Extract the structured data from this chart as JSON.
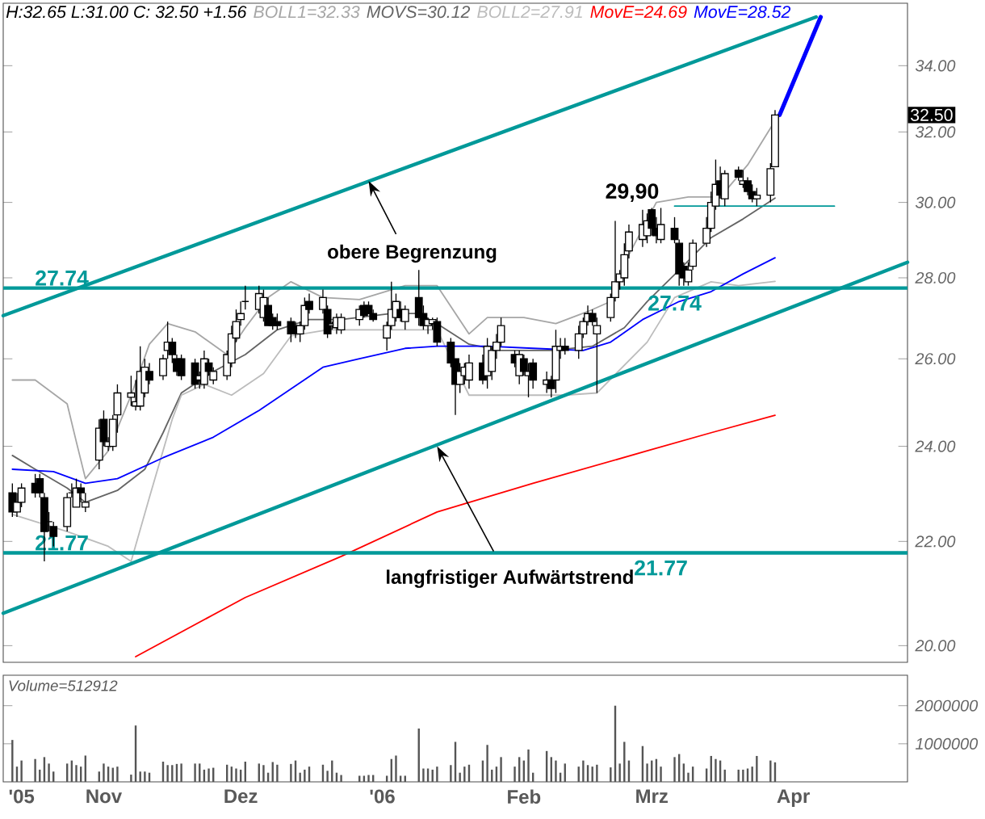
{
  "chart_data": [
    {
      "type": "candlestick",
      "title": "H:32.65 L:31.00 C: 32.50 +1.56",
      "color": "#000000",
      "log": "y",
      "legend": "top",
      "tick_labels": "y",
      "xlim": [
        "2005-10-10",
        "2006-04-26"
      ],
      "ylim": [
        19.7,
        36
      ],
      "yticks": [
        {
          "value": 20,
          "label": "20.00"
        },
        {
          "value": 22,
          "label": "22.00"
        },
        {
          "value": 24,
          "label": "24.00"
        },
        {
          "value": 26,
          "label": "26.00"
        },
        {
          "value": 28,
          "label": "28.00"
        },
        {
          "value": 30,
          "label": "30.00"
        },
        {
          "value": 32,
          "label": "32.00"
        },
        {
          "value": 34,
          "label": "34.00"
        }
      ],
      "x": [
        "2005-10-12",
        "2005-10-13",
        "2005-10-14",
        "2005-10-17",
        "2005-10-18",
        "2005-10-19",
        "2005-10-20",
        "2005-10-21",
        "2005-10-24",
        "2005-10-25",
        "2005-10-26",
        "2005-10-27",
        "2005-10-28",
        "2005-10-31",
        "2005-11-01",
        "2005-11-02",
        "2005-11-03",
        "2005-11-04",
        "2005-11-07",
        "2005-11-08",
        "2005-11-09",
        "2005-11-10",
        "2005-11-11",
        "2005-11-14",
        "2005-11-15",
        "2005-11-16",
        "2005-11-17",
        "2005-11-18",
        "2005-11-21",
        "2005-11-22",
        "2005-11-23",
        "2005-11-24",
        "2005-11-25",
        "2005-11-28",
        "2005-11-29",
        "2005-11-30",
        "2005-12-01",
        "2005-12-02",
        "2005-12-05",
        "2005-12-06",
        "2005-12-07",
        "2005-12-08",
        "2005-12-09",
        "2005-12-12",
        "2005-12-13",
        "2005-12-14",
        "2005-12-15",
        "2005-12-16",
        "2005-12-19",
        "2005-12-20",
        "2005-12-21",
        "2005-12-22",
        "2005-12-23",
        "2005-12-27",
        "2005-12-28",
        "2005-12-29",
        "2005-12-30",
        "2006-01-02",
        "2006-01-03",
        "2006-01-04",
        "2006-01-05",
        "2006-01-06",
        "2006-01-09",
        "2006-01-10",
        "2006-01-11",
        "2006-01-12",
        "2006-01-13",
        "2006-01-16",
        "2006-01-17",
        "2006-01-18",
        "2006-01-19",
        "2006-01-20",
        "2006-01-23",
        "2006-01-24",
        "2006-01-25",
        "2006-01-26",
        "2006-01-27",
        "2006-01-30",
        "2006-01-31",
        "2006-02-01",
        "2006-02-02",
        "2006-02-03",
        "2006-02-06",
        "2006-02-07",
        "2006-02-08",
        "2006-02-09",
        "2006-02-10",
        "2006-02-13",
        "2006-02-14",
        "2006-02-15",
        "2006-02-16",
        "2006-02-17",
        "2006-02-20",
        "2006-02-21",
        "2006-02-22",
        "2006-02-23",
        "2006-02-24",
        "2006-02-27",
        "2006-02-28",
        "2006-03-01",
        "2006-03-02",
        "2006-03-03",
        "2006-03-06",
        "2006-03-07",
        "2006-03-08",
        "2006-03-09",
        "2006-03-10",
        "2006-03-13",
        "2006-03-14",
        "2006-03-15",
        "2006-03-16",
        "2006-03-17",
        "2006-03-20",
        "2006-03-21",
        "2006-03-22",
        "2006-03-23",
        "2006-03-24",
        "2006-03-27",
        "2006-03-28"
      ],
      "ohlc": [
        [
          23.0,
          23.2,
          22.5,
          22.6
        ],
        [
          22.6,
          23.0,
          22.5,
          22.8
        ],
        [
          22.8,
          23.2,
          22.7,
          23.1
        ],
        [
          23.2,
          23.4,
          22.9,
          23.0
        ],
        [
          23.3,
          23.4,
          22.9,
          23.0
        ],
        [
          22.9,
          23.0,
          21.6,
          22.2
        ],
        [
          22.4,
          22.6,
          22.2,
          22.4
        ],
        [
          22.3,
          22.4,
          21.9,
          22.1
        ],
        [
          22.3,
          23.0,
          22.2,
          22.9
        ],
        [
          23.0,
          23.2,
          22.9,
          23.0
        ],
        [
          22.7,
          23.3,
          22.7,
          23.1
        ],
        [
          23.1,
          23.2,
          22.8,
          23.0
        ],
        [
          22.7,
          23.0,
          22.6,
          22.8
        ],
        [
          23.7,
          24.6,
          23.5,
          24.4
        ],
        [
          24.6,
          24.8,
          24.0,
          24.1
        ],
        [
          24.0,
          24.2,
          23.9,
          24.1
        ],
        [
          24.0,
          24.7,
          23.9,
          24.6
        ],
        [
          24.7,
          25.4,
          24.3,
          25.2
        ],
        [
          25.1,
          25.6,
          24.9,
          25.2
        ],
        [
          24.9,
          25.5,
          24.8,
          25.0
        ],
        [
          24.9,
          26.3,
          24.8,
          25.7
        ],
        [
          25.2,
          26.0,
          25.1,
          25.8
        ],
        [
          25.7,
          25.9,
          25.4,
          25.5
        ],
        [
          25.6,
          26.1,
          25.5,
          26.0
        ],
        [
          26.2,
          26.9,
          26.0,
          26.4
        ],
        [
          26.4,
          26.5,
          25.9,
          26.1
        ],
        [
          26.0,
          26.1,
          25.6,
          25.7
        ],
        [
          26.0,
          26.1,
          25.5,
          25.6
        ],
        [
          25.9,
          26.0,
          25.3,
          25.4
        ],
        [
          25.5,
          25.7,
          25.3,
          25.6
        ],
        [
          25.4,
          26.2,
          25.3,
          26.0
        ],
        [
          25.9,
          26.0,
          25.6,
          25.7
        ],
        [
          25.5,
          25.8,
          25.4,
          25.7
        ],
        [
          25.6,
          26.2,
          25.5,
          26.1
        ],
        [
          25.9,
          26.8,
          25.8,
          26.6
        ],
        [
          26.5,
          27.2,
          26.4,
          26.9
        ],
        [
          26.95,
          27.4,
          26.8,
          27.1
        ],
        [
          27.4,
          27.8,
          27.2,
          27.4
        ],
        [
          27.2,
          27.8,
          27.1,
          27.6
        ],
        [
          27.0,
          27.7,
          26.9,
          27.5
        ],
        [
          27.3,
          27.5,
          26.8,
          26.8
        ],
        [
          27.0,
          27.1,
          26.7,
          26.8
        ],
        [
          26.9,
          27.1,
          26.7,
          26.8
        ],
        [
          26.9,
          27.0,
          26.4,
          26.6
        ],
        [
          26.8,
          26.9,
          26.5,
          26.6
        ],
        [
          26.6,
          26.9,
          26.4,
          26.8
        ],
        [
          26.8,
          27.5,
          26.7,
          27.3
        ],
        [
          27.4,
          27.6,
          27.1,
          27.2
        ],
        [
          27.2,
          27.7,
          27.1,
          27.5
        ],
        [
          27.2,
          27.3,
          26.5,
          26.6
        ],
        [
          26.8,
          26.9,
          26.7,
          26.85
        ],
        [
          26.75,
          27.1,
          26.6,
          27.0
        ],
        [
          26.7,
          27.1,
          26.6,
          27.0
        ],
        [
          26.95,
          27.3,
          26.8,
          27.2
        ],
        [
          27.3,
          27.4,
          27.0,
          27.05
        ],
        [
          27.3,
          27.4,
          27.1,
          27.1
        ],
        [
          27.1,
          27.2,
          26.9,
          26.95
        ],
        [
          26.5,
          26.9,
          26.2,
          26.8
        ],
        [
          26.8,
          27.9,
          26.7,
          27.2
        ],
        [
          27.0,
          27.6,
          26.9,
          27.4
        ],
        [
          27.2,
          27.4,
          26.9,
          27.0
        ],
        [
          26.9,
          27.3,
          26.7,
          27.2
        ],
        [
          27.5,
          28.2,
          26.8,
          27.0
        ],
        [
          27.1,
          27.3,
          26.7,
          26.8
        ],
        [
          26.8,
          27.0,
          26.6,
          26.95
        ],
        [
          26.85,
          27.0,
          26.7,
          26.95
        ],
        [
          26.9,
          27.0,
          26.3,
          26.4
        ],
        [
          26.4,
          26.5,
          25.8,
          25.9
        ],
        [
          26.0,
          26.0,
          24.7,
          25.4
        ],
        [
          25.4,
          25.9,
          25.2,
          25.7
        ],
        [
          25.6,
          25.9,
          25.4,
          25.8
        ],
        [
          25.5,
          26.1,
          25.3,
          25.9
        ],
        [
          25.9,
          26.1,
          25.4,
          25.5
        ],
        [
          25.6,
          26.5,
          25.3,
          26.3
        ],
        [
          25.7,
          26.3,
          25.5,
          26.2
        ],
        [
          26.2,
          26.6,
          26.0,
          26.4
        ],
        [
          26.4,
          27.0,
          26.3,
          26.8
        ],
        [
          26.1,
          26.2,
          25.8,
          25.9
        ],
        [
          25.6,
          26.2,
          25.4,
          26.1
        ],
        [
          26.0,
          26.1,
          25.6,
          25.7
        ],
        [
          25.6,
          25.9,
          25.1,
          25.7
        ],
        [
          25.9,
          26.0,
          25.3,
          25.5
        ],
        [
          25.4,
          25.7,
          25.2,
          25.5
        ],
        [
          25.5,
          25.6,
          25.1,
          25.3
        ],
        [
          25.5,
          26.7,
          25.2,
          26.3
        ],
        [
          26.2,
          26.5,
          26.0,
          26.3
        ],
        [
          26.3,
          26.5,
          26.1,
          26.2
        ],
        [
          26.2,
          26.8,
          26.0,
          26.6
        ],
        [
          26.6,
          27.0,
          26.5,
          26.9
        ],
        [
          26.9,
          27.3,
          26.8,
          27.1
        ],
        [
          27.1,
          27.2,
          26.8,
          26.9
        ],
        [
          26.6,
          27.0,
          25.2,
          26.8
        ],
        [
          27.0,
          27.6,
          26.9,
          27.5
        ],
        [
          27.5,
          29.5,
          27.4,
          27.9
        ],
        [
          27.9,
          28.2,
          27.7,
          28.1
        ],
        [
          28.0,
          28.9,
          27.8,
          28.6
        ],
        [
          28.7,
          29.4,
          28.5,
          29.2
        ],
        [
          29.0,
          29.8,
          28.8,
          29.4
        ],
        [
          29.1,
          29.7,
          28.9,
          29.5
        ],
        [
          29.8,
          29.85,
          29.1,
          29.3
        ],
        [
          29.3,
          29.6,
          28.9,
          29.1
        ],
        [
          29.0,
          29.85,
          28.9,
          29.4
        ],
        [
          29.3,
          29.6,
          28.9,
          29.0
        ],
        [
          28.9,
          29.0,
          27.8,
          28.1
        ],
        [
          28.3,
          28.4,
          27.8,
          28.0
        ],
        [
          27.9,
          28.4,
          27.8,
          28.2
        ],
        [
          28.3,
          29.0,
          28.2,
          28.9
        ],
        [
          28.9,
          29.6,
          28.8,
          29.3
        ],
        [
          29.3,
          30.3,
          29.2,
          30.0
        ],
        [
          29.9,
          31.2,
          29.8,
          30.5
        ],
        [
          30.6,
          31.0,
          30.1,
          30.2
        ],
        [
          30.1,
          30.9,
          29.9,
          30.8
        ],
        [
          30.9,
          31.0,
          30.6,
          30.7
        ],
        [
          30.5,
          30.9,
          30.4,
          30.6
        ],
        [
          30.6,
          30.7,
          30.2,
          30.3
        ],
        [
          30.3,
          30.5,
          30.0,
          30.1
        ],
        [
          30.1,
          30.4,
          29.9,
          30.2
        ],
        [
          30.2,
          31.1,
          30.0,
          30.94
        ],
        [
          31.0,
          32.65,
          31.0,
          32.5
        ]
      ],
      "series": [
        {
          "name": "BOLL1=32.33",
          "type": "line",
          "color": "#a6a6a6",
          "x": [
            "2005-10-12",
            "2005-10-17",
            "2005-10-24",
            "2005-10-26",
            "2005-10-28",
            "2005-11-02",
            "2005-11-07",
            "2005-11-11",
            "2005-11-15",
            "2005-11-21",
            "2005-11-28",
            "2005-12-02",
            "2005-12-07",
            "2005-12-12",
            "2005-12-19",
            "2005-12-27",
            "2006-01-06",
            "2006-01-13",
            "2006-01-20",
            "2006-01-24",
            "2006-02-01",
            "2006-02-08",
            "2006-02-15",
            "2006-02-20",
            "2006-02-24",
            "2006-03-02",
            "2006-03-09",
            "2006-03-16",
            "2006-03-22",
            "2006-03-28"
          ],
          "values": [
            25.5,
            25.5,
            24.95,
            24.1,
            23.3,
            23.9,
            25.15,
            26.35,
            26.85,
            26.65,
            26.1,
            26.75,
            27.5,
            27.9,
            27.5,
            27.45,
            27.8,
            27.8,
            26.6,
            27.0,
            27.0,
            26.85,
            27.15,
            27.4,
            28.6,
            30.0,
            30.15,
            30.15,
            31.05,
            32.33
          ]
        },
        {
          "name": "MOVS=30.12",
          "type": "line",
          "color": "#646464",
          "x": [
            "2005-10-12",
            "2005-10-17",
            "2005-10-24",
            "2005-10-28",
            "2005-11-04",
            "2005-11-10",
            "2005-11-14",
            "2005-11-18",
            "2005-11-25",
            "2005-12-02",
            "2005-12-09",
            "2005-12-16",
            "2005-12-23",
            "2006-01-03",
            "2006-01-09",
            "2006-01-13",
            "2006-01-20",
            "2006-01-27",
            "2006-02-07",
            "2006-02-16",
            "2006-02-23",
            "2006-02-28",
            "2006-03-07",
            "2006-03-14",
            "2006-03-21",
            "2006-03-28"
          ],
          "values": [
            23.8,
            23.5,
            23.1,
            22.8,
            23.05,
            23.5,
            24.3,
            25.2,
            25.7,
            26.1,
            26.7,
            26.95,
            26.95,
            27.1,
            27.1,
            26.85,
            26.35,
            26.2,
            26.2,
            26.3,
            26.75,
            27.4,
            28.2,
            29.05,
            29.55,
            30.12
          ]
        },
        {
          "name": "BOLL2=27.91",
          "type": "line",
          "color": "#bcbcbc",
          "x": [
            "2005-10-12",
            "2005-10-24",
            "2005-11-02",
            "2005-11-07",
            "2005-11-11",
            "2005-11-16",
            "2005-11-18",
            "2005-11-23",
            "2005-11-29",
            "2005-12-06",
            "2005-12-12",
            "2005-12-20",
            "2006-01-03",
            "2006-01-13",
            "2006-01-20",
            "2006-02-01",
            "2006-02-10",
            "2006-02-17",
            "2006-02-28",
            "2006-03-06",
            "2006-03-14",
            "2006-03-20",
            "2006-03-28"
          ],
          "values": [
            22.55,
            22.2,
            21.9,
            21.6,
            22.9,
            24.6,
            25.15,
            25.4,
            25.15,
            25.65,
            26.55,
            26.7,
            26.7,
            26.7,
            25.15,
            25.15,
            25.15,
            25.2,
            26.4,
            27.5,
            27.9,
            27.8,
            27.91
          ]
        },
        {
          "name": "MovE=24.69",
          "type": "line",
          "color": "#ff0000",
          "x": [
            "2005-11-08",
            "2005-12-02",
            "2005-12-23",
            "2006-01-13",
            "2006-02-03",
            "2006-02-28",
            "2006-03-14",
            "2006-03-28"
          ],
          "values": [
            19.8,
            20.9,
            21.7,
            22.6,
            23.2,
            23.9,
            24.3,
            24.69
          ]
        },
        {
          "name": "MovE=28.52",
          "type": "line",
          "color": "#0000ff",
          "x": [
            "2005-10-12",
            "2005-10-21",
            "2005-10-28",
            "2005-11-04",
            "2005-11-14",
            "2005-11-25",
            "2005-12-05",
            "2005-12-19",
            "2005-12-27",
            "2006-01-06",
            "2006-01-13",
            "2006-01-24",
            "2006-02-03",
            "2006-02-14",
            "2006-02-20",
            "2006-02-27",
            "2006-03-07",
            "2006-03-14",
            "2006-03-21",
            "2006-03-28"
          ],
          "values": [
            23.5,
            23.45,
            23.2,
            23.3,
            23.75,
            24.2,
            24.8,
            25.8,
            26.0,
            26.25,
            26.3,
            26.3,
            26.25,
            26.2,
            26.4,
            26.95,
            27.4,
            27.65,
            28.1,
            28.52
          ]
        },
        {
          "type": "line",
          "color": "#009999",
          "x": [
            "2005-10-10",
            "2006-04-06"
          ],
          "values": [
            27.05,
            35.55
          ]
        },
        {
          "type": "line",
          "color": "#009999",
          "x": [
            "2005-10-10",
            "2006-04-26"
          ],
          "values": [
            20.6,
            28.4
          ]
        },
        {
          "type": "line",
          "color": "#009999",
          "x": [
            "2006-03-06",
            "2006-04-10"
          ],
          "values": [
            29.9,
            29.9
          ]
        },
        {
          "type": "line",
          "color": "#0000ff",
          "x": [
            "2006-03-29",
            "2006-04-07"
          ],
          "values": [
            32.5,
            35.55
          ]
        }
      ],
      "ref_lines": [
        {
          "axis": "y",
          "value": 27.74,
          "label": "27.74",
          "color": "#009999"
        },
        {
          "axis": "y",
          "value": 21.77,
          "label": "21.77",
          "color": "#009999"
        }
      ],
      "annotations": [
        {
          "text": "obere Begrenzung",
          "x": "2005-12-29",
          "y": 30.6
        },
        {
          "text": "langfristiger Aufwärtstrend",
          "x": "2006-01-13",
          "y": 24.0
        },
        {
          "text": "29,90",
          "x": "2006-03-06",
          "y": 29.9
        },
        {
          "text": "27.74",
          "x": "2006-03-06",
          "y": 27.74
        },
        {
          "text": "21.77",
          "x": "2006-03-03",
          "y": 21.77
        },
        {
          "text": "32.50",
          "y": 32.5
        }
      ]
    },
    {
      "type": "bar",
      "color": "#555555",
      "xlim": [
        "2005-10-10",
        "2006-04-26"
      ],
      "ylim": [
        0,
        2800000
      ],
      "yticks": [
        1000000,
        2000000
      ],
      "xticks": [
        {
          "value": "2005-10-14",
          "label": "'05"
        },
        {
          "value": "2005-11-01",
          "label": "Nov"
        },
        {
          "value": "2005-12-01",
          "label": "Dez"
        },
        {
          "value": "2006-01-01",
          "label": "'06"
        },
        {
          "value": "2006-02-01",
          "label": "Feb"
        },
        {
          "value": "2006-03-01",
          "label": "Mrz"
        },
        {
          "value": "2006-04-01",
          "label": "Apr"
        }
      ],
      "x": [
        "2005-10-12",
        "2005-10-13",
        "2005-10-14",
        "2005-10-17",
        "2005-10-18",
        "2005-10-19",
        "2005-10-20",
        "2005-10-21",
        "2005-10-24",
        "2005-10-25",
        "2005-10-26",
        "2005-10-27",
        "2005-10-28",
        "2005-10-31",
        "2005-11-01",
        "2005-11-02",
        "2005-11-03",
        "2005-11-04",
        "2005-11-07",
        "2005-11-08",
        "2005-11-09",
        "2005-11-10",
        "2005-11-11",
        "2005-11-14",
        "2005-11-15",
        "2005-11-16",
        "2005-11-17",
        "2005-11-18",
        "2005-11-21",
        "2005-11-22",
        "2005-11-23",
        "2005-11-24",
        "2005-11-25",
        "2005-11-28",
        "2005-11-29",
        "2005-11-30",
        "2005-12-01",
        "2005-12-02",
        "2005-12-05",
        "2005-12-06",
        "2005-12-07",
        "2005-12-08",
        "2005-12-09",
        "2005-12-12",
        "2005-12-13",
        "2005-12-14",
        "2005-12-15",
        "2005-12-16",
        "2005-12-19",
        "2005-12-20",
        "2005-12-21",
        "2005-12-22",
        "2005-12-23",
        "2005-12-27",
        "2005-12-28",
        "2005-12-29",
        "2005-12-30",
        "2006-01-02",
        "2006-01-03",
        "2006-01-04",
        "2006-01-05",
        "2006-01-06",
        "2006-01-09",
        "2006-01-10",
        "2006-01-11",
        "2006-01-12",
        "2006-01-13",
        "2006-01-16",
        "2006-01-17",
        "2006-01-18",
        "2006-01-19",
        "2006-01-20",
        "2006-01-23",
        "2006-01-24",
        "2006-01-25",
        "2006-01-26",
        "2006-01-27",
        "2006-01-30",
        "2006-01-31",
        "2006-02-01",
        "2006-02-02",
        "2006-02-03",
        "2006-02-06",
        "2006-02-07",
        "2006-02-08",
        "2006-02-09",
        "2006-02-10",
        "2006-02-13",
        "2006-02-14",
        "2006-02-15",
        "2006-02-16",
        "2006-02-17",
        "2006-02-20",
        "2006-02-21",
        "2006-02-22",
        "2006-02-23",
        "2006-02-24",
        "2006-02-27",
        "2006-02-28",
        "2006-03-01",
        "2006-03-02",
        "2006-03-03",
        "2006-03-06",
        "2006-03-07",
        "2006-03-08",
        "2006-03-09",
        "2006-03-10",
        "2006-03-13",
        "2006-03-14",
        "2006-03-15",
        "2006-03-16",
        "2006-03-17",
        "2006-03-20",
        "2006-03-21",
        "2006-03-22",
        "2006-03-23",
        "2006-03-24",
        "2006-03-27",
        "2006-03-28"
      ],
      "values": [
        1100000,
        400000,
        560000,
        600000,
        320000,
        650000,
        480000,
        270000,
        480000,
        560000,
        440000,
        400000,
        690000,
        270000,
        480000,
        400000,
        370000,
        400000,
        190000,
        1480000,
        270000,
        270000,
        240000,
        530000,
        440000,
        440000,
        470000,
        480000,
        480000,
        480000,
        320000,
        350000,
        370000,
        450000,
        400000,
        350000,
        320000,
        530000,
        480000,
        440000,
        240000,
        520000,
        450000,
        470000,
        560000,
        240000,
        320000,
        400000,
        450000,
        290000,
        560000,
        240000,
        180000,
        160000,
        160000,
        180000,
        180000,
        160000,
        600000,
        690000,
        160000,
        160000,
        1400000,
        350000,
        350000,
        320000,
        400000,
        440000,
        1050000,
        240000,
        400000,
        450000,
        560000,
        970000,
        320000,
        400000,
        650000,
        400000,
        650000,
        560000,
        850000,
        240000,
        810000,
        650000,
        560000,
        240000,
        480000,
        400000,
        560000,
        440000,
        400000,
        450000,
        380000,
        2000000,
        480000,
        1050000,
        560000,
        940000,
        480000,
        560000,
        600000,
        400000,
        650000,
        730000,
        480000,
        240000,
        400000,
        350000,
        680000,
        600000,
        560000,
        320000,
        320000,
        320000,
        350000,
        400000,
        680000,
        560000,
        512912
      ],
      "annotations": [
        "Volume=512912"
      ]
    }
  ]
}
